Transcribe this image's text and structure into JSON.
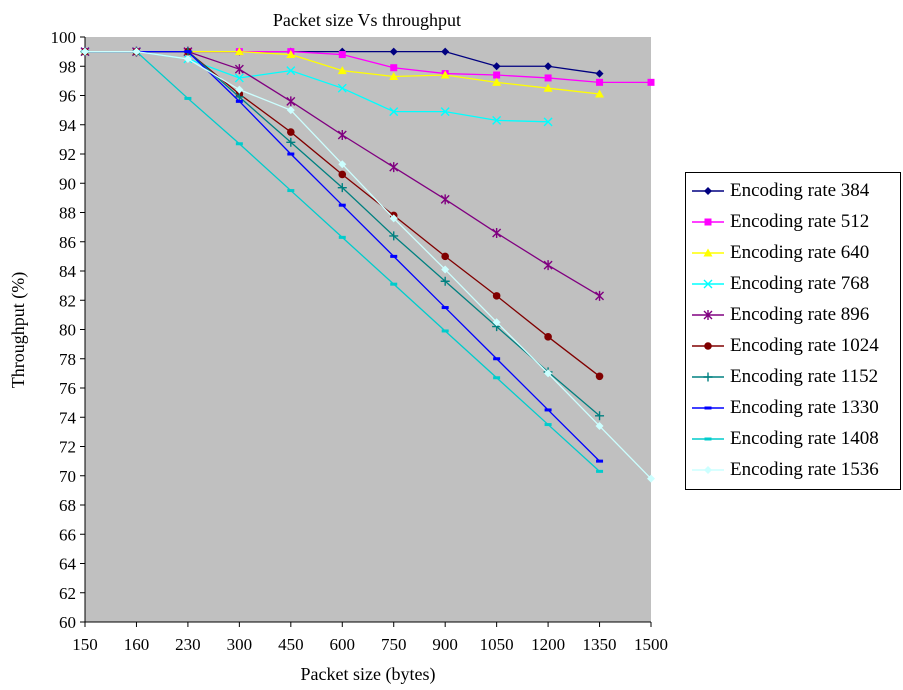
{
  "chart_data": {
    "type": "line",
    "title": "Packet size Vs throughput",
    "xlabel": "Packet size (bytes)",
    "ylabel": "Throughput (%)",
    "categories": [
      "150",
      "160",
      "230",
      "300",
      "450",
      "600",
      "750",
      "900",
      "1050",
      "1200",
      "1350",
      "1500"
    ],
    "ylim": [
      60,
      100
    ],
    "yticks": [
      60,
      62,
      64,
      66,
      68,
      70,
      72,
      74,
      76,
      78,
      80,
      82,
      84,
      86,
      88,
      90,
      92,
      94,
      96,
      98,
      100
    ],
    "x_axis_scale": "categorical (equally spaced)",
    "grid": false,
    "plot_background": "#c0c0c0",
    "legend_position": "right",
    "series": [
      {
        "name": "Encoding rate 384",
        "color": "#000080",
        "marker": "diamond",
        "values": [
          99,
          99,
          99,
          99,
          99,
          99,
          99,
          99,
          98,
          98,
          97.5,
          null
        ]
      },
      {
        "name": "Encoding rate 512",
        "color": "#ff00ff",
        "marker": "square",
        "values": [
          99,
          99,
          99,
          99,
          99,
          98.8,
          97.9,
          97.5,
          97.4,
          97.2,
          96.9,
          96.9
        ]
      },
      {
        "name": "Encoding rate 640",
        "color": "#ffff00",
        "marker": "triangle",
        "values": [
          99,
          99,
          99,
          99,
          98.8,
          97.7,
          97.3,
          97.4,
          96.9,
          96.5,
          96.1,
          null
        ]
      },
      {
        "name": "Encoding rate 768",
        "color": "#00ffff",
        "marker": "x",
        "values": [
          99,
          99,
          98.5,
          97.2,
          97.7,
          96.5,
          94.9,
          94.9,
          94.3,
          94.2,
          null,
          null
        ]
      },
      {
        "name": "Encoding rate 896",
        "color": "#800080",
        "marker": "star",
        "values": [
          99,
          99,
          99,
          97.8,
          95.6,
          93.3,
          91.1,
          88.9,
          86.6,
          84.4,
          82.3,
          null
        ]
      },
      {
        "name": "Encoding rate 1024",
        "color": "#800000",
        "marker": "circle",
        "values": [
          99,
          99,
          99,
          96.1,
          93.5,
          90.6,
          87.8,
          85,
          82.3,
          79.5,
          76.8,
          null
        ]
      },
      {
        "name": "Encoding rate 1152",
        "color": "#008080",
        "marker": "plus",
        "values": [
          99,
          99,
          99,
          95.9,
          92.8,
          89.7,
          86.4,
          83.3,
          80.2,
          77.1,
          74.1,
          null
        ]
      },
      {
        "name": "Encoding rate 1330",
        "color": "#0000ff",
        "marker": "dash",
        "values": [
          99,
          99,
          99,
          95.6,
          92,
          88.5,
          85,
          81.5,
          78,
          74.5,
          71,
          null
        ]
      },
      {
        "name": "Encoding rate 1408",
        "color": "#00cccc",
        "marker": "dash",
        "values": [
          99,
          99,
          95.8,
          92.7,
          89.5,
          86.3,
          83.1,
          79.9,
          76.7,
          73.5,
          70.3,
          null
        ]
      },
      {
        "name": "Encoding rate 1536",
        "color": "#ccffff",
        "marker": "diamond",
        "values": [
          99,
          99,
          98.5,
          96.4,
          95,
          91.3,
          87.6,
          84.1,
          80.5,
          77,
          73.4,
          69.8
        ]
      }
    ]
  }
}
